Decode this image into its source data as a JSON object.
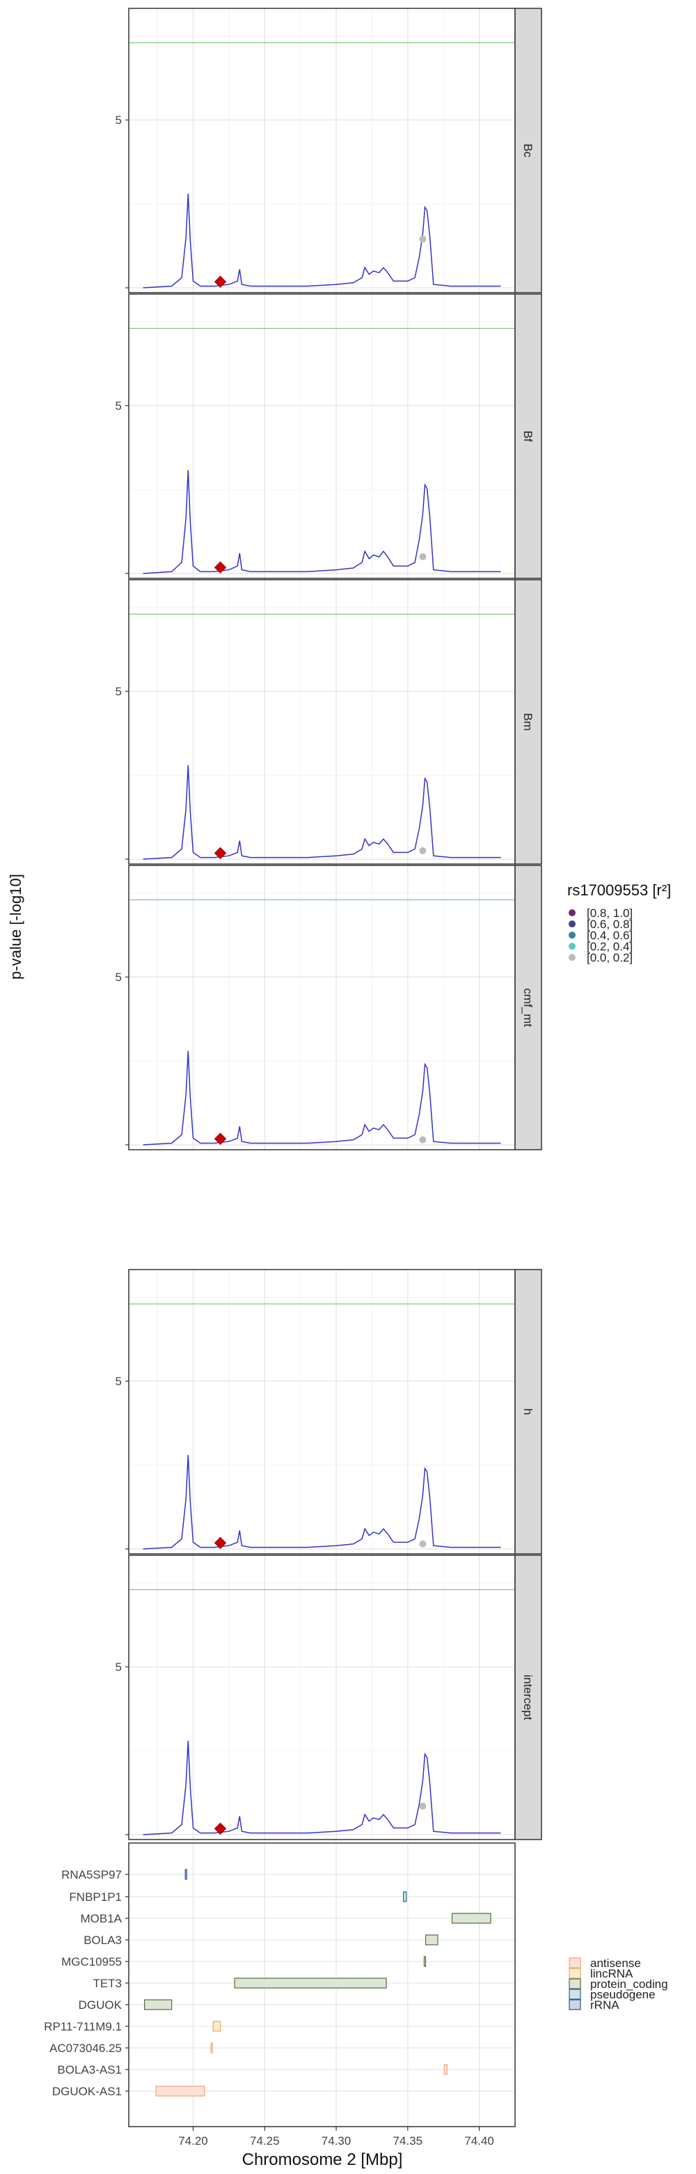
{
  "y_axis_label": "p-value [-log10]",
  "x_axis_label": "Chromosome 2 [Mbp]",
  "chart_data": {
    "type": "line",
    "x_range": [
      74.155,
      74.425
    ],
    "y_range": [
      0,
      8.2
    ],
    "x_ticks": [
      74.2,
      74.25,
      74.3,
      74.35,
      74.4
    ],
    "x_tick_labels": [
      "74.20",
      "74.25",
      "74.30",
      "74.35",
      "74.40"
    ],
    "y_ticks": [
      5
    ],
    "y_tick_labels": [
      "5"
    ],
    "significance_threshold": 7.3,
    "threshold_color": "#7fc97f",
    "line_color": "#3333cc",
    "lead_snp": {
      "x": 74.219,
      "y": 0.18,
      "color": "#cc0000",
      "shape": "diamond"
    },
    "line_x": [
      74.165,
      74.185,
      74.192,
      74.195,
      74.1965,
      74.198,
      74.2,
      74.205,
      74.215,
      74.225,
      74.231,
      74.2325,
      74.234,
      74.24,
      74.26,
      74.28,
      74.3,
      74.312,
      74.318,
      74.32,
      74.323,
      74.326,
      74.33,
      74.333,
      74.336,
      74.34,
      74.35,
      74.355,
      74.358,
      74.3605,
      74.362,
      74.3635,
      74.3655,
      74.368,
      74.38,
      74.415
    ],
    "line_y": [
      0,
      0.05,
      0.3,
      1.5,
      2.8,
      1.4,
      0.2,
      0.05,
      0.05,
      0.1,
      0.2,
      0.55,
      0.1,
      0.05,
      0.05,
      0.05,
      0.1,
      0.15,
      0.3,
      0.6,
      0.4,
      0.5,
      0.45,
      0.6,
      0.45,
      0.2,
      0.2,
      0.3,
      0.9,
      1.6,
      2.4,
      2.3,
      1.5,
      0.1,
      0.05,
      0.05
    ],
    "panels": [
      {
        "label": "Bc",
        "line_scale": 1.0,
        "gray_point": {
          "x": 74.3605,
          "y": 1.45
        }
      },
      {
        "label": "Bf",
        "line_scale": 1.1,
        "gray_point": {
          "x": 74.3605,
          "y": 0.5
        }
      },
      {
        "label": "Bm",
        "line_scale": 1.0,
        "gray_point": {
          "x": 74.3605,
          "y": 0.25
        }
      },
      {
        "label": "cmf_mt",
        "line_scale": 1.0,
        "gray_point": {
          "x": 74.3605,
          "y": 0.15
        }
      },
      {
        "label": "h",
        "line_scale": 1.0,
        "gray_point": {
          "x": 74.3605,
          "y": 0.15
        }
      },
      {
        "label": "intercept",
        "line_scale": 1.0,
        "gray_point": {
          "x": 74.3605,
          "y": 0.85
        }
      }
    ],
    "ld_legend": {
      "title": "rs17009553 [r²]",
      "entries": [
        {
          "label": "[0.8, 1.0]",
          "color": "#6a2c70"
        },
        {
          "label": "[0.6, 0.8]",
          "color": "#4a3f8c"
        },
        {
          "label": "[0.4, 0.6]",
          "color": "#3b80a0"
        },
        {
          "label": "[0.2, 0.4]",
          "color": "#5ec6c8"
        },
        {
          "label": "[0.0, 0.2]",
          "color": "#bbbbbb"
        }
      ]
    },
    "genes": [
      {
        "name": "RNA5SP97",
        "start": 74.1945,
        "end": 74.1955,
        "biotype": "rRNA"
      },
      {
        "name": "FNBP1P1",
        "start": 74.347,
        "end": 74.349,
        "biotype": "pseudogene"
      },
      {
        "name": "MOB1A",
        "start": 74.381,
        "end": 74.408,
        "biotype": "protein_coding"
      },
      {
        "name": "BOLA3",
        "start": 74.3625,
        "end": 74.371,
        "biotype": "protein_coding"
      },
      {
        "name": "MGC10955",
        "start": 74.3615,
        "end": 74.3625,
        "biotype": "protein_coding"
      },
      {
        "name": "TET3",
        "start": 74.229,
        "end": 74.335,
        "biotype": "protein_coding"
      },
      {
        "name": "DGUOK",
        "start": 74.166,
        "end": 74.185,
        "biotype": "protein_coding"
      },
      {
        "name": "RP11-711M9.1",
        "start": 74.214,
        "end": 74.219,
        "biotype": "lincRNA"
      },
      {
        "name": "AC073046.25",
        "start": 74.2125,
        "end": 74.2135,
        "biotype": "lincRNA"
      },
      {
        "name": "BOLA3-AS1",
        "start": 74.3755,
        "end": 74.3775,
        "biotype": "antisense"
      },
      {
        "name": "DGUOK-AS1",
        "start": 74.174,
        "end": 74.208,
        "biotype": "antisense"
      }
    ],
    "biotype_legend": [
      {
        "label": "antisense",
        "fill": "#fde0d4",
        "stroke": "#f4a582"
      },
      {
        "label": "lincRNA",
        "fill": "#fdebc8",
        "stroke": "#d9b26a"
      },
      {
        "label": "protein_coding",
        "fill": "#dde6d4",
        "stroke": "#556b44"
      },
      {
        "label": "pseudogene",
        "fill": "#cfe3ea",
        "stroke": "#2c6b8a"
      },
      {
        "label": "rRNA",
        "fill": "#c8d6ec",
        "stroke": "#2c4f8a"
      }
    ]
  }
}
